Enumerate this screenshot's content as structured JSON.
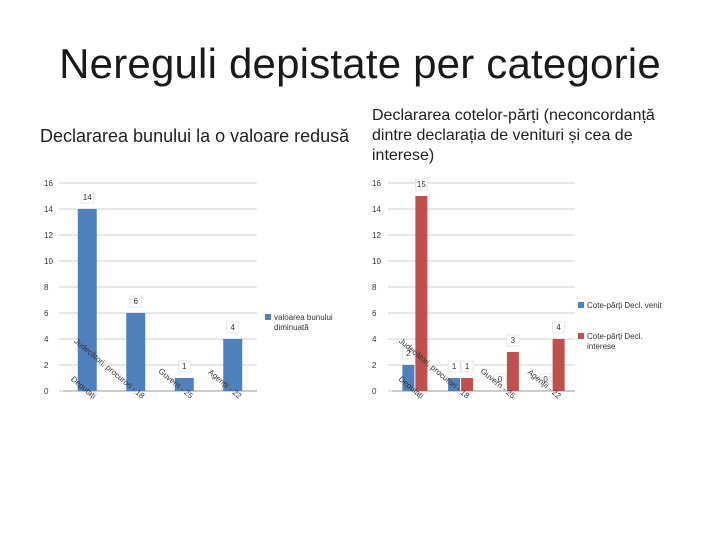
{
  "slide_title": "Nereguli depistate per categorie",
  "chart_data": [
    {
      "type": "bar",
      "title": "Declararea bunului la o valoare redusă",
      "categories": [
        "Deputați",
        "Judecători, procurori - 18",
        "Guvern - 25",
        "Agenții - 22"
      ],
      "series": [
        {
          "name": "valoarea bunului diminuată",
          "values": [
            14,
            6,
            1,
            4
          ],
          "color": "#4f81bd"
        }
      ],
      "ylim": [
        0,
        16
      ],
      "yticks": [
        "0",
        "2",
        "4",
        "6",
        "8",
        "10",
        "12",
        "14",
        "16"
      ],
      "grid": true,
      "legend_position": "right"
    },
    {
      "type": "bar",
      "title": "Declararea cotelor-părți (neconcordanță dintre declarația de venituri și cea de interese)",
      "categories": [
        "Deputați",
        "Judecători, procurori - 18",
        "Guvern - 25",
        "Agenții - 22"
      ],
      "series": [
        {
          "name": "Cote-părți Decl. venit",
          "values": [
            2,
            1,
            0,
            0
          ],
          "color": "#4f81bd"
        },
        {
          "name": "Cote-părți Decl. interese",
          "values": [
            15,
            1,
            3,
            4
          ],
          "color": "#c0504d"
        }
      ],
      "ylim": [
        0,
        16
      ],
      "yticks": [
        "0",
        "2",
        "4",
        "6",
        "8",
        "10",
        "12",
        "14",
        "16"
      ],
      "grid": true,
      "legend_position": "right"
    }
  ]
}
